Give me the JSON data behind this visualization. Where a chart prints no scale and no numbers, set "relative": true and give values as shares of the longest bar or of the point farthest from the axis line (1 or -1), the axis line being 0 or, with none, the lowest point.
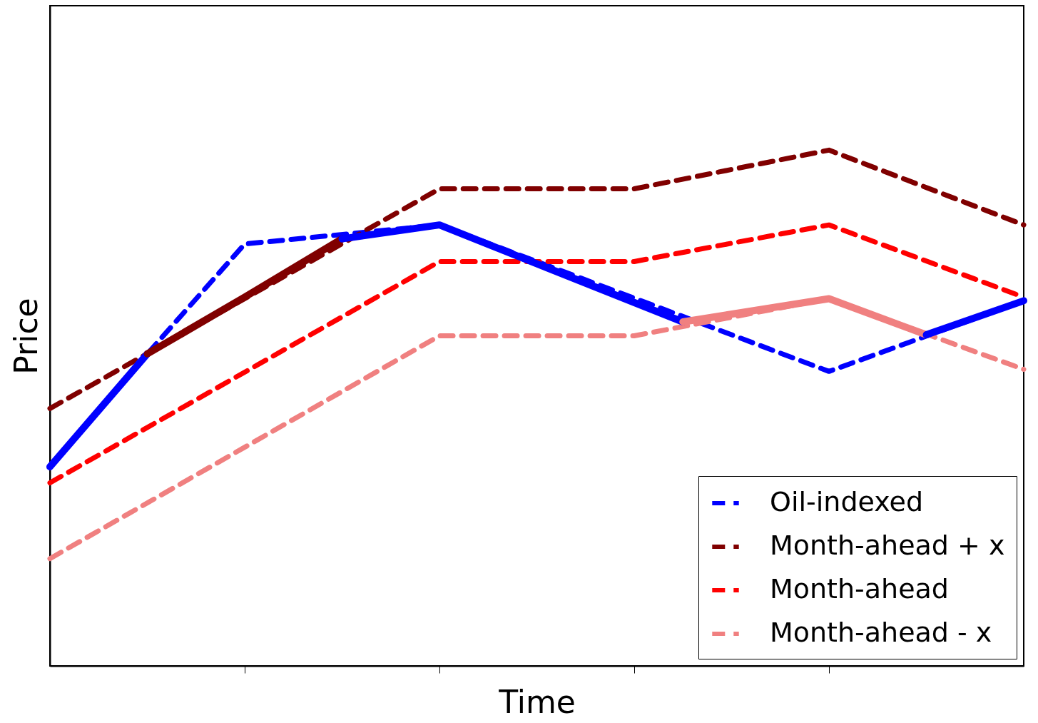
{
  "chart_data": {
    "type": "line",
    "relative": true,
    "xlabel": "Time",
    "ylabel": "Price",
    "grid": false,
    "legend": "bottom right",
    "categories": [
      null,
      null,
      null,
      null,
      null,
      null,
      null,
      null,
      null,
      null,
      null,
      null,
      null,
      null,
      null,
      null,
      null,
      null,
      null,
      null,
      null
    ],
    "series": [
      {
        "name": "Oil-indexed",
        "color": "#0000ff",
        "line_style": "dashed",
        "values": [
          0.386,
          null,
          0.605,
          null,
          0.818,
          null,
          null,
          null,
          0.855,
          null,
          null,
          null,
          null,
          null,
          null,
          null,
          0.571,
          null,
          null,
          null,
          0.708
        ]
      },
      {
        "name": "Month-ahead + x",
        "color": "#800000",
        "line_style": "dashed",
        "values": [
          0.499,
          null,
          null,
          null,
          null,
          null,
          null,
          null,
          0.925,
          null,
          null,
          null,
          0.925,
          null,
          null,
          null,
          1,
          null,
          null,
          null,
          0.855
        ]
      },
      {
        "name": "Month-ahead",
        "color": "#ff0000",
        "line_style": "dashed",
        "values": [
          0.355,
          null,
          null,
          null,
          null,
          null,
          null,
          null,
          0.784,
          null,
          null,
          null,
          0.784,
          null,
          null,
          null,
          0.855,
          null,
          null,
          null,
          0.715
        ]
      },
      {
        "name": "Month-ahead - x",
        "color": "#f08080",
        "line_style": "dashed",
        "values": [
          0.208,
          null,
          null,
          null,
          null,
          null,
          null,
          null,
          0.64,
          null,
          null,
          null,
          0.64,
          null,
          null,
          null,
          0.712,
          null,
          null,
          null,
          0.575
        ]
      },
      {
        "color": "#0000ff",
        "line_style": "solid",
        "values": [
          0.386,
          null,
          0.605,
          null,
          null,
          null,
          null,
          null,
          null,
          null,
          null,
          null,
          null,
          null,
          null,
          null,
          null,
          null,
          null,
          null,
          null
        ]
      },
      {
        "color": "#800000",
        "line_style": "solid",
        "values": [
          null,
          null,
          0.605,
          null,
          0.715,
          null,
          0.828,
          null,
          null,
          null,
          null,
          null,
          null,
          null,
          null,
          null,
          null,
          null,
          null,
          null,
          null
        ]
      },
      {
        "color": "#0000ff",
        "line_style": "solid",
        "values": [
          null,
          null,
          null,
          null,
          null,
          null,
          0.828,
          null,
          0.855,
          null,
          null,
          null,
          null,
          0.667,
          null,
          null,
          null,
          null,
          null,
          null,
          null
        ]
      },
      {
        "color": "#f08080",
        "line_style": "solid",
        "values": [
          null,
          null,
          null,
          null,
          null,
          null,
          null,
          null,
          null,
          null,
          null,
          null,
          null,
          0.667,
          null,
          null,
          0.712,
          null,
          0.642,
          null,
          null
        ]
      },
      {
        "color": "#0000ff",
        "line_style": "solid",
        "values": [
          null,
          null,
          null,
          null,
          null,
          null,
          null,
          null,
          null,
          null,
          null,
          null,
          null,
          null,
          null,
          null,
          null,
          null,
          0.642,
          null,
          0.708
        ]
      }
    ]
  }
}
